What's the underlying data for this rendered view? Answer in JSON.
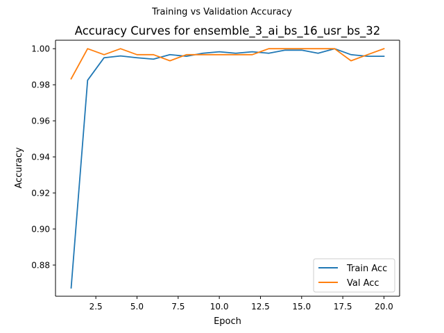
{
  "figure": {
    "suptitle": "Training vs Validation Accuracy"
  },
  "chart_data": {
    "type": "line",
    "title": "Accuracy Curves for ensemble_3_ai_bs_16_usr_bs_32",
    "xlabel": "Epoch",
    "ylabel": "Accuracy",
    "xlim": [
      0.05,
      20.95
    ],
    "ylim": [
      0.8627,
      1.0047
    ],
    "x_ticks": [
      2.5,
      5.0,
      7.5,
      10.0,
      12.5,
      15.0,
      17.5,
      20.0
    ],
    "x_tick_labels": [
      "2.5",
      "5.0",
      "7.5",
      "10.0",
      "12.5",
      "15.0",
      "17.5",
      "20.0"
    ],
    "y_ticks": [
      0.88,
      0.9,
      0.92,
      0.94,
      0.96,
      0.98,
      1.0
    ],
    "y_tick_labels": [
      "0.88",
      "0.90",
      "0.92",
      "0.94",
      "0.96",
      "0.98",
      "1.00"
    ],
    "grid": false,
    "legend_position": "lower-right",
    "x": [
      1,
      2,
      3,
      4,
      5,
      6,
      7,
      8,
      9,
      10,
      11,
      12,
      13,
      14,
      15,
      16,
      17,
      18,
      19,
      20
    ],
    "series": [
      {
        "name": "Train Acc",
        "color": "#1f77b4",
        "values": [
          0.8673,
          0.9825,
          0.995,
          0.996,
          0.995,
          0.9942,
          0.9967,
          0.9958,
          0.9975,
          0.9983,
          0.9975,
          0.9983,
          0.9975,
          0.9992,
          0.9992,
          0.9975,
          1.0,
          0.9967,
          0.9958,
          0.9958
        ]
      },
      {
        "name": "Val Acc",
        "color": "#ff7f0e",
        "values": [
          0.9833,
          1.0,
          0.9967,
          1.0,
          0.9967,
          0.9967,
          0.9933,
          0.9967,
          0.9967,
          0.9967,
          0.9967,
          0.9967,
          1.0,
          1.0,
          1.0,
          1.0,
          1.0,
          0.9933,
          0.9967,
          1.0
        ]
      }
    ]
  }
}
